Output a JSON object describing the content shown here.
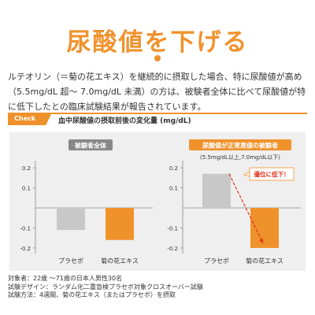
{
  "title": "尿酸値を下げる",
  "intro": "ルテオリン（＝菊の花エキス）を継続的に摂取した場合、特に尿酸値が高め（5.5mg/dL 超～ 7.0mg/dL 未満）の方は、被験者全体に比べて尿酸値が特に低下したとの臨床試験結果が報告されています。",
  "check": {
    "tag": "Check",
    "label": "血中尿酸値の摂取前後の変化量 (mg/dL)"
  },
  "colors": {
    "accent": "#f0922c",
    "placebo": "#c8c8c8",
    "extract": "#f0922c",
    "badge_dark": "#888888",
    "panel_bg": "#efefef"
  },
  "chart_data": [
    {
      "type": "bar",
      "title": "被験者全体",
      "subtitle": "",
      "annotation": "",
      "categories": [
        "プラセボ",
        "菊の花エキス"
      ],
      "values": [
        -0.11,
        -0.16
      ],
      "yticks": [
        0.2,
        0.1,
        -0.1,
        -0.2
      ],
      "ylim": [
        -0.22,
        0.22
      ],
      "xlabel": "",
      "ylabel": ""
    },
    {
      "type": "bar",
      "title": "尿酸値が正常高値の被験者",
      "subtitle": "(5.5mg/dL以上,7.0mg/dL以下)",
      "annotation": "優位に低下！",
      "categories": [
        "プラセボ",
        "菊の花エキス"
      ],
      "values": [
        0.17,
        -0.2
      ],
      "yticks": [
        0.2,
        0.1,
        -0.1,
        -0.2
      ],
      "ylim": [
        -0.22,
        0.22
      ],
      "xlabel": "",
      "ylabel": ""
    }
  ],
  "footer": [
    "対象者：22歳 ～71歳の日本人男性30名",
    "試験デザイン：ランダム化二重盲検プラセボ対象クロスオーバー試験",
    "試験方法：4週間、菊の花エキス（またはプラセボ）を摂取"
  ]
}
